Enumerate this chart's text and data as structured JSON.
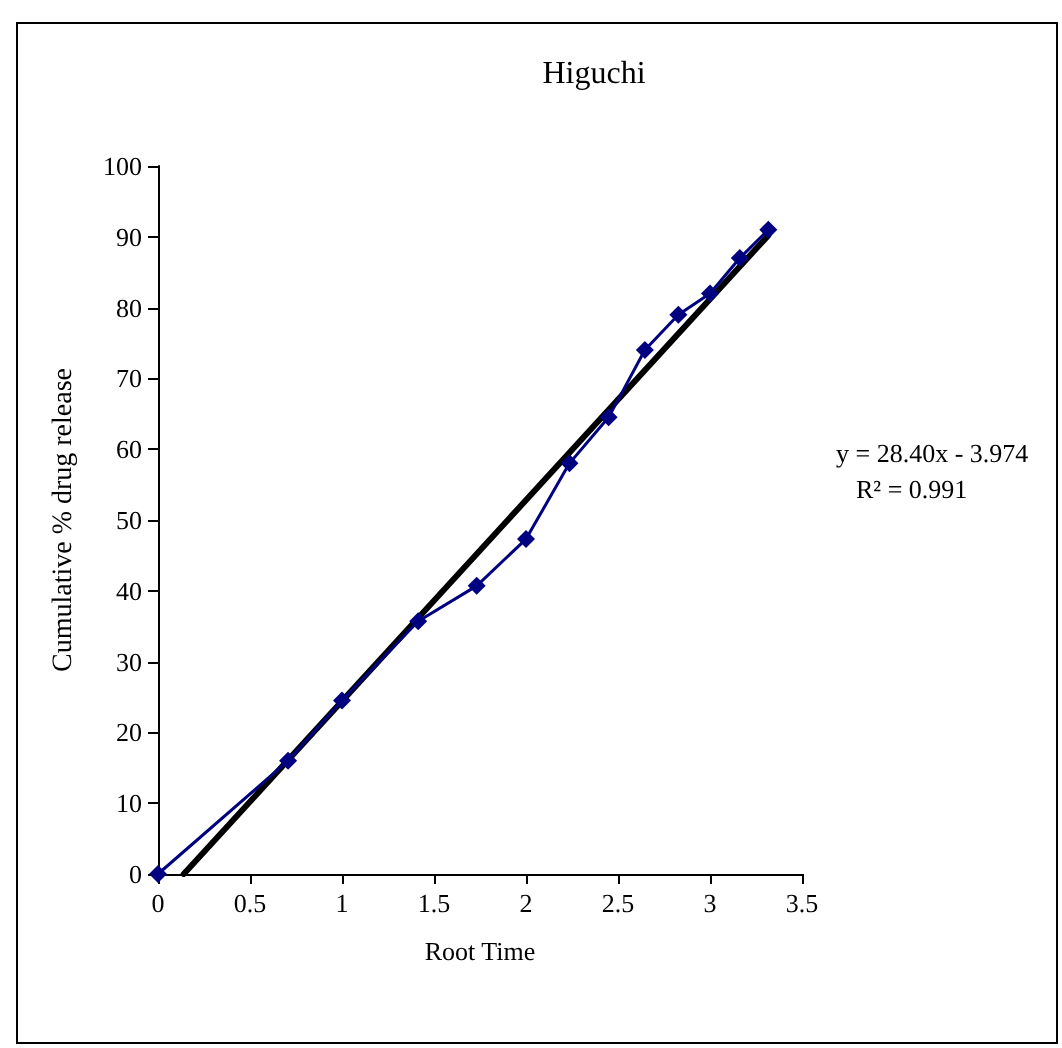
{
  "chart_data": {
    "type": "line",
    "title": "Higuchi",
    "xlabel": "Root Time",
    "ylabel": "Cumulative % drug release",
    "xlim": [
      0,
      3.5
    ],
    "xticks": [
      0,
      0.5,
      1,
      1.5,
      2,
      2.5,
      3,
      3.5
    ],
    "ylim": [
      0,
      100
    ],
    "yticks": [
      0,
      10,
      20,
      30,
      40,
      50,
      60,
      70,
      80,
      90,
      100
    ],
    "grid": false,
    "series": [
      {
        "color": "#000080",
        "marker": "diamond",
        "x": [
          0,
          0.707,
          1,
          1.414,
          1.732,
          2,
          2.236,
          2.449,
          2.646,
          2.828,
          3,
          3.162,
          3.317
        ],
        "values": [
          0,
          16,
          24.5,
          35.7,
          40.7,
          47.3,
          58,
          64.5,
          74,
          79,
          82,
          87,
          91
        ]
      },
      {
        "color": "#000000",
        "marker": "none",
        "x": [
          0.14,
          3.317
        ],
        "values": [
          0,
          90.2
        ]
      }
    ],
    "annotations": [
      "y = 28.40x - 3.974",
      "R² = 0.991"
    ]
  }
}
